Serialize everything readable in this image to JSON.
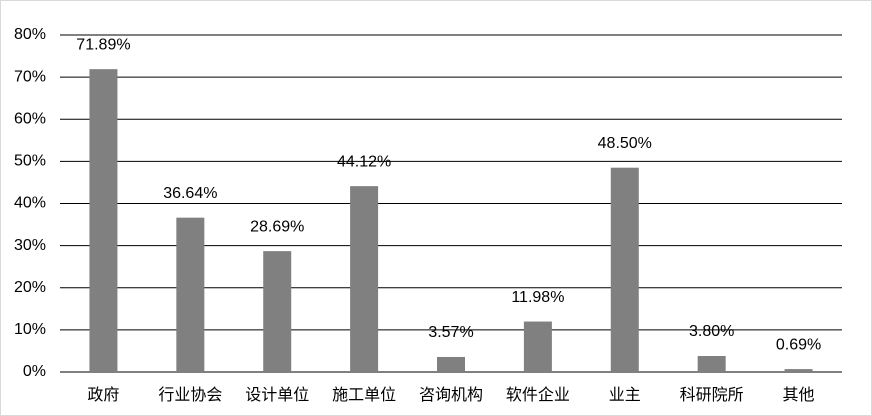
{
  "chart_data": {
    "type": "bar",
    "categories": [
      "政府",
      "行业协会",
      "设计单位",
      "施工单位",
      "咨询机构",
      "软件企业",
      "业主",
      "科研院所",
      "其他"
    ],
    "values": [
      71.89,
      36.64,
      28.69,
      44.12,
      3.57,
      11.98,
      48.5,
      3.8,
      0.69
    ],
    "value_labels": [
      "71.89%",
      "36.64%",
      "28.69%",
      "44.12%",
      "3.57%",
      "11.98%",
      "48.50%",
      "3.80%",
      "0.69%"
    ],
    "color": "#808080",
    "ylim": [
      0,
      80
    ],
    "yticks": [
      {
        "value": 0,
        "label": "0%"
      },
      {
        "value": 10,
        "label": "10%"
      },
      {
        "value": 20,
        "label": "20%"
      },
      {
        "value": 30,
        "label": "30%"
      },
      {
        "value": 40,
        "label": "40%"
      },
      {
        "value": 50,
        "label": "50%"
      },
      {
        "value": 60,
        "label": "60%"
      },
      {
        "value": 70,
        "label": "70%"
      },
      {
        "value": 80,
        "label": "80%"
      }
    ],
    "grid": true
  }
}
